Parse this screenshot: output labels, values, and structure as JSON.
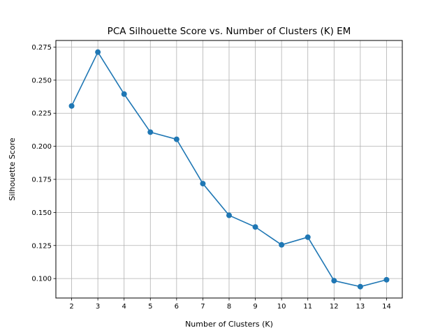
{
  "chart_data": {
    "type": "line",
    "title": "PCA Silhouette Score vs. Number of Clusters (K) EM",
    "xlabel": "Number of Clusters (K)",
    "ylabel": "Silhouette Score",
    "x": [
      2,
      3,
      4,
      5,
      6,
      7,
      8,
      9,
      10,
      11,
      12,
      13,
      14
    ],
    "series": [
      {
        "values": [
          0.2305,
          0.2712,
          0.2395,
          0.2107,
          0.2053,
          0.1718,
          0.1478,
          0.139,
          0.1255,
          0.1313,
          0.0984,
          0.0939,
          0.0991
        ]
      }
    ],
    "xticks": [
      "2",
      "3",
      "4",
      "5",
      "6",
      "7",
      "8",
      "9",
      "10",
      "11",
      "12",
      "13",
      "14"
    ],
    "yticks": [
      "0.100",
      "0.125",
      "0.150",
      "0.175",
      "0.200",
      "0.225",
      "0.250",
      "0.275"
    ],
    "xlim": [
      1.4,
      14.6
    ],
    "ylim": [
      0.0853,
      0.28
    ],
    "grid": true,
    "line_color": "#1f77b4",
    "grid_color": "#b0b0b0"
  }
}
